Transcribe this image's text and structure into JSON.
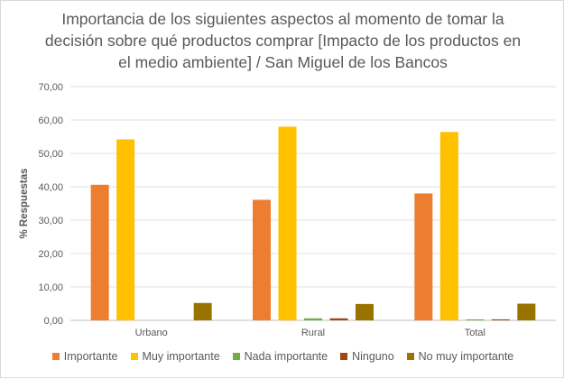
{
  "chart_data": {
    "type": "bar",
    "title": "Importancia de los siguientes aspectos al momento de tomar la decisión sobre qué productos comprar [Impacto de los productos en el medio ambiente] / San Miguel de los Bancos",
    "ylabel": "% Respuestas",
    "xlabel": "",
    "ylim": [
      0,
      70
    ],
    "yticks": [
      "0,00",
      "10,00",
      "20,00",
      "30,00",
      "40,00",
      "50,00",
      "60,00",
      "70,00"
    ],
    "grid": true,
    "legend_position": "bottom",
    "categories": [
      "Urbano",
      "Rural",
      "Total"
    ],
    "series": [
      {
        "name": "Importante",
        "color": "#ED7D31",
        "values": [
          40.6,
          36.1,
          38.0
        ]
      },
      {
        "name": "Muy importante",
        "color": "#FFC000",
        "values": [
          54.2,
          58.0,
          56.4
        ]
      },
      {
        "name": "Nada importante",
        "color": "#70AD47",
        "values": [
          0.0,
          0.6,
          0.3
        ]
      },
      {
        "name": "Ninguno",
        "color": "#9E480E",
        "values": [
          0.0,
          0.6,
          0.3
        ]
      },
      {
        "name": "No muy importante",
        "color": "#997300",
        "values": [
          5.2,
          4.9,
          5.0
        ]
      }
    ]
  }
}
